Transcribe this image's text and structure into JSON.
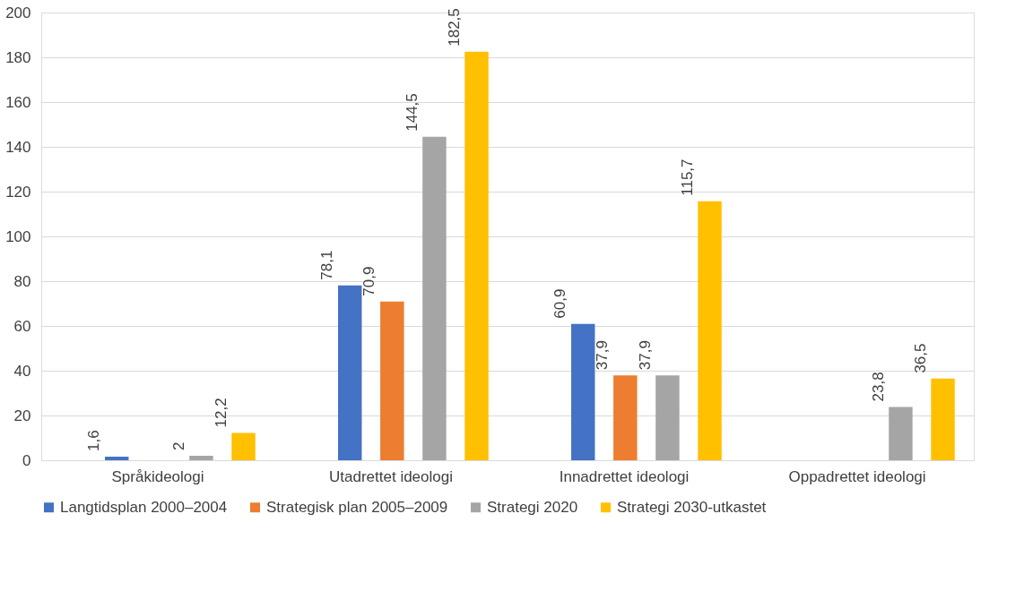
{
  "chart_data": {
    "type": "bar",
    "categories": [
      "Språkideologi",
      "Utadrettet ideologi",
      "Innadrettet ideologi",
      "Oppadrettet ideologi"
    ],
    "series": [
      {
        "name": "Langtidsplan 2000–2004",
        "color": "#4472c4",
        "values": [
          1.6,
          78.1,
          60.9,
          null
        ],
        "value_labels": [
          "1,6",
          "78,1",
          "60,9",
          null
        ]
      },
      {
        "name": "Strategisk plan 2005–2009",
        "color": "#ed7d31",
        "values": [
          null,
          70.9,
          37.9,
          null
        ],
        "value_labels": [
          null,
          "70,9",
          "37,9",
          null
        ]
      },
      {
        "name": "Strategi 2020",
        "color": "#a5a5a5",
        "values": [
          2,
          144.5,
          37.9,
          23.8
        ],
        "value_labels": [
          "2",
          "144,5",
          "37,9",
          "23,8"
        ]
      },
      {
        "name": "Strategi 2030-utkastet",
        "color": "#ffc000",
        "values": [
          12.2,
          182.5,
          115.7,
          36.5
        ],
        "value_labels": [
          "12,2",
          "182,5",
          "115,7",
          "36,5"
        ]
      }
    ],
    "ylim": [
      0,
      200
    ],
    "yticks": [
      0,
      20,
      40,
      60,
      80,
      100,
      120,
      140,
      160,
      180,
      200
    ],
    "grid": "y",
    "legend": "bottom"
  }
}
